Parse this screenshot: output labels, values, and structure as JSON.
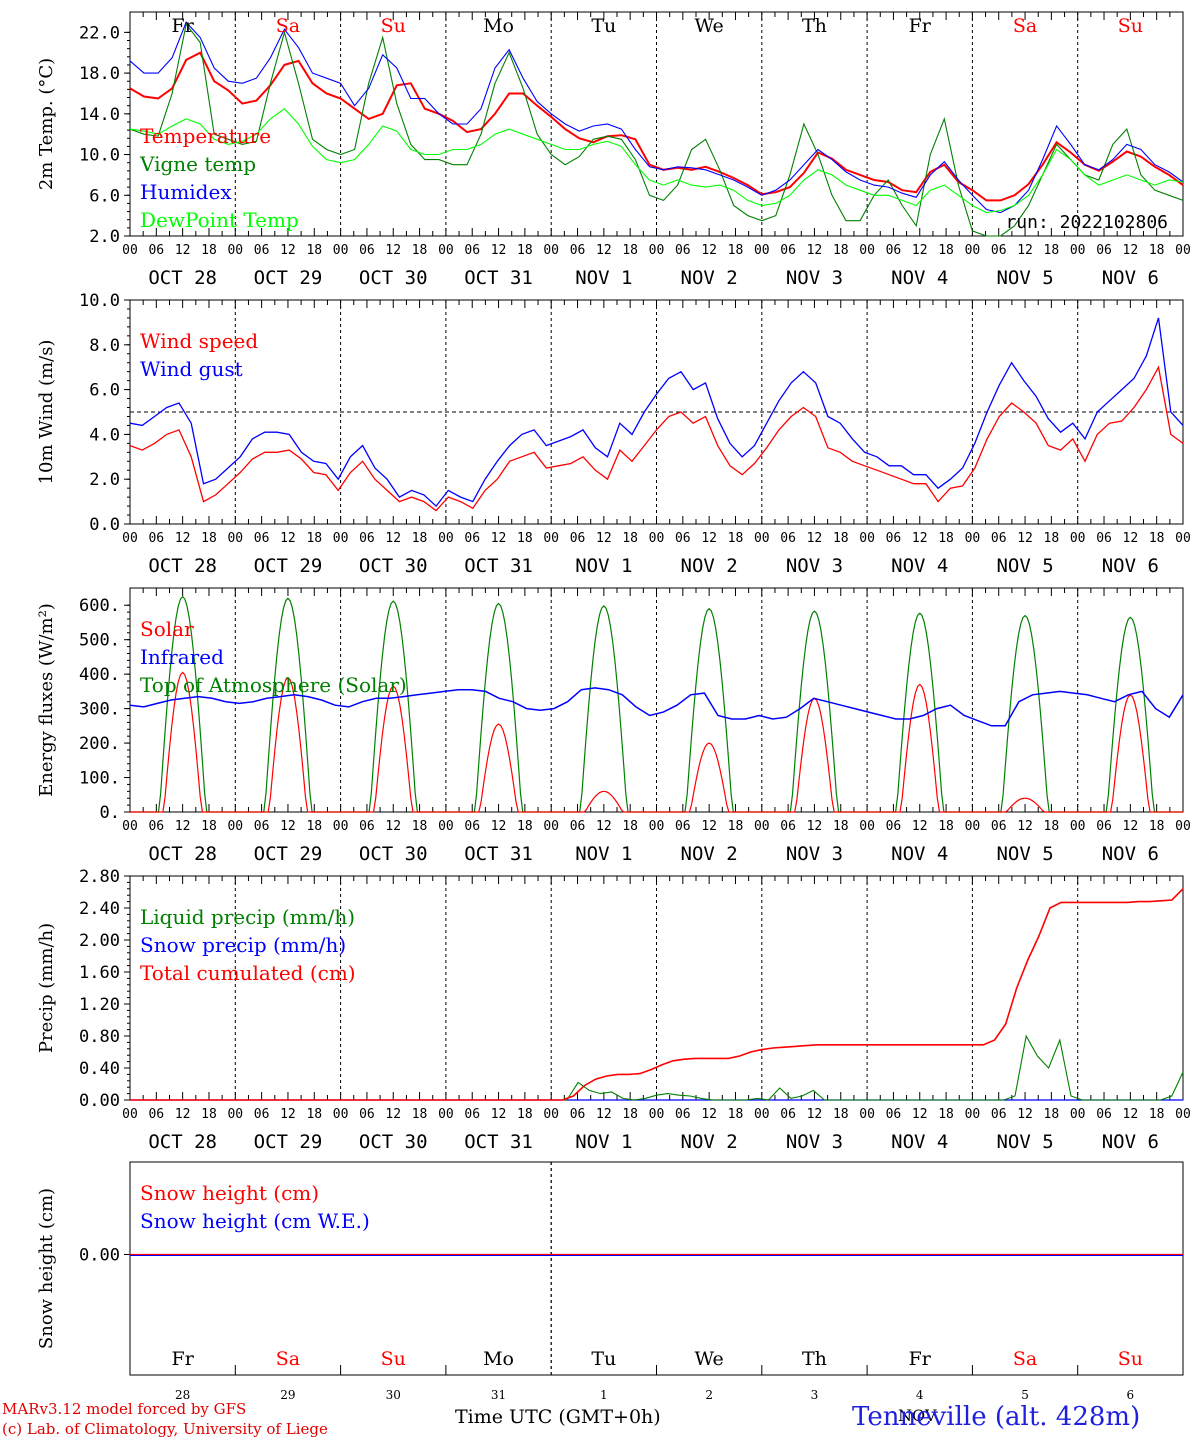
{
  "chart_data": [
    {
      "type": "line",
      "ylabel": "2m Temp. (°C)",
      "ylim": [
        2.0,
        24.0
      ],
      "yticks": [
        "2.0",
        "6.0",
        "10.0",
        "14.0",
        "18.0",
        "22.0"
      ],
      "note": "run: 2022102806",
      "day_names": [
        {
          "label": "Fr",
          "color": "#000000"
        },
        {
          "label": "Sa",
          "color": "#ff0000"
        },
        {
          "label": "Su",
          "color": "#ff0000"
        },
        {
          "label": "Mo",
          "color": "#000000"
        },
        {
          "label": "Tu",
          "color": "#000000"
        },
        {
          "label": "We",
          "color": "#000000"
        },
        {
          "label": "Th",
          "color": "#000000"
        },
        {
          "label": "Fr",
          "color": "#000000"
        },
        {
          "label": "Sa",
          "color": "#ff0000"
        },
        {
          "label": "Su",
          "color": "#ff0000"
        }
      ],
      "series": [
        {
          "name": "Temperature",
          "color": "#ff0000",
          "values": [
            16.5,
            15.7,
            15.5,
            16.5,
            19.3,
            20.0,
            17.2,
            16.3,
            15.0,
            15.3,
            16.8,
            18.8,
            19.2,
            17.0,
            16.0,
            15.5,
            14.5,
            13.5,
            14.0,
            16.8,
            17.0,
            14.5,
            14.0,
            13.3,
            12.2,
            12.5,
            14.0,
            16.0,
            16.0,
            14.8,
            13.7,
            12.5,
            11.6,
            11.2,
            11.8,
            11.9,
            11.5,
            9.0,
            8.5,
            8.7,
            8.5,
            8.8,
            8.3,
            7.7,
            7.0,
            6.1,
            6.3,
            6.8,
            8.2,
            10.2,
            9.6,
            8.5,
            8.0,
            7.5,
            7.3,
            6.5,
            6.3,
            8.3,
            9.0,
            7.3,
            6.5,
            5.5,
            5.5,
            6.0,
            7.1,
            9.0,
            11.2,
            10.2,
            9.0,
            8.4,
            9.3,
            10.3,
            9.8,
            8.8,
            8.0,
            7.0
          ]
        },
        {
          "name": "Vigne temp",
          "color": "#008000",
          "values": [
            12.5,
            12.0,
            11.8,
            16.0,
            22.8,
            21.0,
            12.0,
            11.5,
            11.0,
            11.3,
            17.0,
            22.0,
            17.0,
            11.5,
            10.5,
            10.0,
            10.5,
            17.0,
            21.5,
            15.0,
            11.0,
            9.5,
            9.5,
            9.0,
            9.0,
            12.0,
            17.0,
            20.0,
            16.5,
            12.0,
            10.0,
            9.0,
            9.8,
            11.5,
            11.8,
            11.5,
            9.5,
            6.0,
            5.5,
            7.0,
            10.5,
            11.5,
            8.5,
            5.0,
            4.0,
            3.5,
            4.0,
            8.0,
            13.0,
            10.0,
            6.0,
            3.5,
            3.5,
            6.0,
            7.5,
            5.0,
            3.0,
            10.0,
            13.5,
            7.0,
            2.5,
            1.5,
            2.0,
            3.0,
            5.0,
            8.0,
            11.0,
            9.5,
            8.0,
            7.5,
            11.0,
            12.5,
            8.0,
            6.5,
            6.0,
            5.5
          ]
        },
        {
          "name": "Humidex",
          "color": "#0000ff",
          "values": [
            19.2,
            18.0,
            18.0,
            19.5,
            23.0,
            21.5,
            18.5,
            17.2,
            17.0,
            17.5,
            19.5,
            22.3,
            20.5,
            18.0,
            17.5,
            17.0,
            14.8,
            16.5,
            19.8,
            18.5,
            15.5,
            15.5,
            14.0,
            13.0,
            13.0,
            14.5,
            18.5,
            20.3,
            17.5,
            15.2,
            14.0,
            13.0,
            12.3,
            12.8,
            13.0,
            12.5,
            10.5,
            8.8,
            8.5,
            8.8,
            8.7,
            8.5,
            8.0,
            7.5,
            6.8,
            6.0,
            6.5,
            7.5,
            9.0,
            10.5,
            9.5,
            8.3,
            7.5,
            7.0,
            6.8,
            6.2,
            5.8,
            8.0,
            9.3,
            7.5,
            6.0,
            4.6,
            4.3,
            5.0,
            6.5,
            9.5,
            12.8,
            11.0,
            9.0,
            8.5,
            9.5,
            11.0,
            10.5,
            9.0,
            8.3,
            7.3
          ]
        },
        {
          "name": "DewPoint Temp",
          "color": "#00ff00",
          "values": [
            12.5,
            12.3,
            12.0,
            12.8,
            13.5,
            13.0,
            11.5,
            11.0,
            11.3,
            12.0,
            13.5,
            14.5,
            13.0,
            10.8,
            9.5,
            9.2,
            9.5,
            11.0,
            12.8,
            12.3,
            10.5,
            10.0,
            10.0,
            10.5,
            10.5,
            11.0,
            12.0,
            12.5,
            12.0,
            11.5,
            11.0,
            10.5,
            10.5,
            11.0,
            11.3,
            10.8,
            9.0,
            7.5,
            7.0,
            7.5,
            7.0,
            6.8,
            7.0,
            6.5,
            5.5,
            5.0,
            5.2,
            6.0,
            7.5,
            8.5,
            8.0,
            7.0,
            6.5,
            6.0,
            6.0,
            5.5,
            5.0,
            6.5,
            7.0,
            6.0,
            5.0,
            4.3,
            4.5,
            5.0,
            6.0,
            8.0,
            10.5,
            9.5,
            8.0,
            7.0,
            7.5,
            8.0,
            7.5,
            7.0,
            7.5,
            7.3
          ]
        }
      ]
    },
    {
      "type": "line",
      "ylabel": "10m Wind (m/s)",
      "ylim": [
        0.0,
        10.0
      ],
      "yticks": [
        "0.0",
        "2.0",
        "4.0",
        "6.0",
        "8.0",
        "10.0"
      ],
      "reference_line": 5.0,
      "series": [
        {
          "name": "Wind speed",
          "color": "#ff0000",
          "values": [
            3.5,
            3.3,
            3.6,
            4.0,
            4.2,
            3.0,
            1.0,
            1.3,
            1.8,
            2.3,
            2.9,
            3.2,
            3.2,
            3.3,
            2.9,
            2.3,
            2.2,
            1.5,
            2.3,
            2.8,
            2.0,
            1.5,
            1.0,
            1.2,
            1.0,
            0.6,
            1.2,
            1.0,
            0.7,
            1.5,
            2.0,
            2.8,
            3.0,
            3.2,
            2.5,
            2.6,
            2.7,
            3.0,
            2.4,
            2.0,
            3.3,
            2.8,
            3.5,
            4.2,
            4.8,
            5.0,
            4.5,
            4.8,
            3.5,
            2.6,
            2.2,
            2.7,
            3.4,
            4.2,
            4.8,
            5.2,
            4.8,
            3.4,
            3.2,
            2.8,
            2.6,
            2.4,
            2.2,
            2.0,
            1.8,
            1.8,
            1.0,
            1.6,
            1.7,
            2.5,
            3.8,
            4.8,
            5.4,
            5.0,
            4.5,
            3.5,
            3.3,
            3.8,
            2.8,
            4.0,
            4.5,
            4.6,
            5.2,
            6.0,
            7.0,
            4.0,
            3.6
          ]
        },
        {
          "name": "Wind gust",
          "color": "#0000ff",
          "values": [
            4.5,
            4.4,
            4.8,
            5.2,
            5.4,
            4.5,
            1.8,
            2.0,
            2.5,
            3.0,
            3.8,
            4.1,
            4.1,
            4.0,
            3.2,
            2.8,
            2.7,
            2.0,
            3.0,
            3.5,
            2.5,
            2.0,
            1.2,
            1.5,
            1.3,
            0.8,
            1.5,
            1.2,
            1.0,
            2.0,
            2.8,
            3.5,
            4.0,
            4.2,
            3.5,
            3.7,
            3.9,
            4.2,
            3.4,
            3.0,
            4.5,
            4.0,
            5.0,
            5.8,
            6.5,
            6.8,
            6.0,
            6.3,
            4.7,
            3.6,
            3.0,
            3.5,
            4.5,
            5.5,
            6.3,
            6.8,
            6.3,
            4.8,
            4.5,
            3.8,
            3.2,
            3.0,
            2.6,
            2.6,
            2.2,
            2.2,
            1.6,
            2.0,
            2.5,
            3.6,
            5.0,
            6.2,
            7.2,
            6.4,
            5.7,
            4.7,
            4.1,
            4.5,
            3.8,
            5.0,
            5.5,
            6.0,
            6.5,
            7.5,
            9.2,
            5.0,
            4.4
          ]
        }
      ]
    },
    {
      "type": "line",
      "ylabel": "Energy fluxes (W/m²)",
      "ylim": [
        0,
        650
      ],
      "yticks": [
        "0.",
        "100.",
        "200.",
        "300.",
        "400.",
        "500.",
        "600."
      ],
      "series": [
        {
          "name": "Solar",
          "color": "#ff0000",
          "daily_peaks": [
            405,
            390,
            365,
            255,
            60,
            200,
            330,
            370,
            40,
            340
          ]
        },
        {
          "name": "Infrared",
          "color": "#0000ff",
          "values": [
            310,
            305,
            315,
            325,
            330,
            335,
            330,
            320,
            315,
            320,
            330,
            335,
            340,
            335,
            325,
            310,
            305,
            320,
            330,
            330,
            335,
            340,
            345,
            350,
            355,
            355,
            350,
            330,
            320,
            300,
            295,
            300,
            320,
            355,
            360,
            355,
            340,
            305,
            280,
            290,
            310,
            340,
            345,
            280,
            270,
            270,
            280,
            270,
            275,
            300,
            330,
            320,
            310,
            300,
            290,
            280,
            270,
            270,
            280,
            300,
            310,
            280,
            265,
            250,
            250,
            320,
            340,
            345,
            350,
            345,
            340,
            330,
            320,
            340,
            350,
            300,
            275,
            340
          ]
        },
        {
          "name": "Top of Atmosphere (Solar)",
          "color": "#008000",
          "daily_peaks": [
            625,
            620,
            612,
            605,
            598,
            590,
            583,
            577,
            570,
            565
          ]
        }
      ]
    },
    {
      "type": "line",
      "ylabel": "Precip (mm/h)",
      "ylim": [
        0.0,
        2.8
      ],
      "yticks": [
        "0.00",
        "0.40",
        "0.80",
        "1.20",
        "1.60",
        "2.00",
        "2.40",
        "2.80"
      ],
      "series": [
        {
          "name": "Liquid precip (mm/h)",
          "color": "#008000",
          "values": [
            0,
            0,
            0,
            0,
            0,
            0,
            0,
            0,
            0,
            0,
            0,
            0,
            0,
            0,
            0,
            0,
            0,
            0,
            0,
            0,
            0,
            0,
            0,
            0,
            0,
            0,
            0,
            0,
            0,
            0,
            0,
            0,
            0,
            0,
            0,
            0,
            0,
            0,
            0,
            0,
            0.22,
            0.12,
            0.08,
            0.1,
            0.02,
            0,
            0.02,
            0.06,
            0.08,
            0.06,
            0.05,
            0.02,
            0,
            0,
            0,
            0,
            0.02,
            0,
            0.15,
            0.02,
            0.05,
            0.12,
            0,
            0,
            0,
            0,
            0,
            0,
            0,
            0,
            0,
            0,
            0,
            0,
            0,
            0,
            0,
            0,
            0,
            0.05,
            0.8,
            0.55,
            0.4,
            0.75,
            0.05,
            0,
            0,
            0,
            0,
            0,
            0,
            0,
            0,
            0.05,
            0.35
          ]
        },
        {
          "name": "Snow precip (mm/h)",
          "color": "#0000ff",
          "values": [
            0,
            0
          ]
        },
        {
          "name": "Total cumulated (cm)",
          "color": "#ff0000",
          "values": [
            0,
            0,
            0,
            0,
            0,
            0,
            0,
            0,
            0,
            0,
            0,
            0,
            0,
            0,
            0,
            0,
            0,
            0,
            0,
            0,
            0,
            0,
            0,
            0,
            0,
            0,
            0,
            0,
            0,
            0,
            0,
            0,
            0,
            0,
            0,
            0,
            0,
            0,
            0,
            0,
            0.05,
            0.18,
            0.26,
            0.3,
            0.32,
            0.32,
            0.33,
            0.38,
            0.44,
            0.49,
            0.51,
            0.52,
            0.52,
            0.52,
            0.52,
            0.55,
            0.6,
            0.63,
            0.65,
            0.66,
            0.67,
            0.68,
            0.69,
            0.69,
            0.69,
            0.69,
            0.69,
            0.69,
            0.69,
            0.69,
            0.69,
            0.69,
            0.69,
            0.69,
            0.69,
            0.69,
            0.69,
            0.69,
            0.75,
            0.95,
            1.4,
            1.75,
            2.05,
            2.4,
            2.47,
            2.47,
            2.47,
            2.47,
            2.47,
            2.47,
            2.47,
            2.48,
            2.48,
            2.49,
            2.5,
            2.64
          ]
        }
      ]
    },
    {
      "type": "line",
      "ylabel": "Snow height (cm)",
      "yticks": [
        "0.00"
      ],
      "series": [
        {
          "name": "Snow height (cm)",
          "color": "#ff0000",
          "values": [
            0,
            0
          ]
        },
        {
          "name": "Snow height (cm W.E.)",
          "color": "#0000ff",
          "values": [
            0,
            0
          ]
        }
      ],
      "day_names": [
        {
          "label": "Fr",
          "color": "#000000"
        },
        {
          "label": "Sa",
          "color": "#ff0000"
        },
        {
          "label": "Su",
          "color": "#ff0000"
        },
        {
          "label": "Mo",
          "color": "#000000"
        },
        {
          "label": "Tu",
          "color": "#000000"
        },
        {
          "label": "We",
          "color": "#000000"
        },
        {
          "label": "Th",
          "color": "#000000"
        },
        {
          "label": "Fr",
          "color": "#000000"
        },
        {
          "label": "Sa",
          "color": "#ff0000"
        },
        {
          "label": "Su",
          "color": "#ff0000"
        }
      ],
      "day_numbers": [
        "28",
        "29",
        "30",
        "31",
        "1",
        "2",
        "3",
        "4",
        "5",
        "6"
      ]
    }
  ],
  "x_axis": {
    "hour_labels": [
      "00",
      "06",
      "12",
      "18"
    ],
    "end_label": "00",
    "date_labels": [
      "OCT 28",
      "OCT 29",
      "OCT 30",
      "OCT 31",
      "NOV  1",
      "NOV  2",
      "NOV  3",
      "NOV  4",
      "NOV  5",
      "NOV  6"
    ]
  },
  "footer": {
    "credit_line1": "MARv3.12 model forced by GFS",
    "credit_line2": "(c) Lab. of Climatology, University of Liege",
    "xlabel": "Time UTC (GMT+0h)",
    "month": "NOV",
    "station": "Tenneville (alt. 428m)"
  }
}
